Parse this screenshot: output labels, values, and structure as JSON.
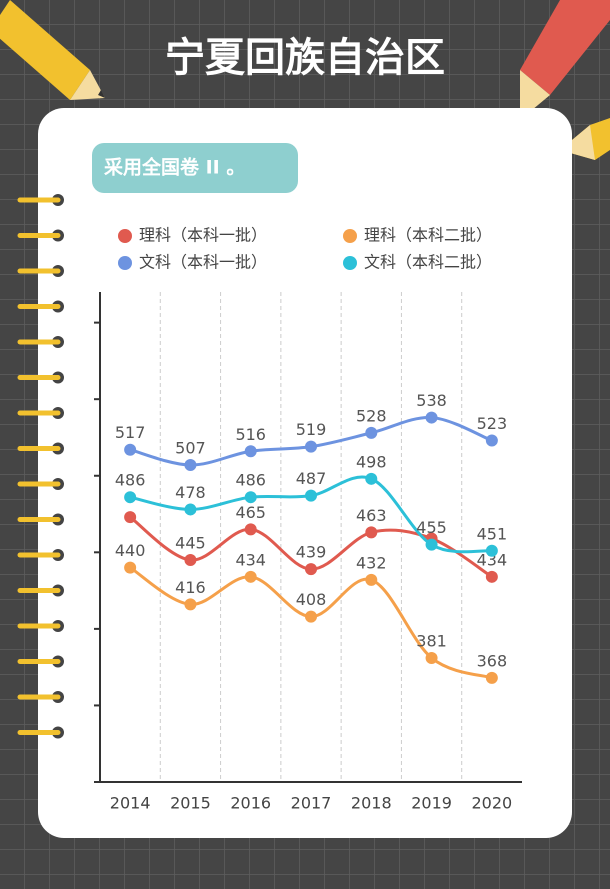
{
  "chart_data": {
    "type": "line",
    "title": "宁夏回族自治区",
    "subtitle": "采用全国卷 II 。",
    "categories": [
      "2014",
      "2015",
      "2016",
      "2017",
      "2018",
      "2019",
      "2020"
    ],
    "ylim": [
      300,
      620
    ],
    "yticks": [
      300,
      350,
      400,
      450,
      500,
      550,
      600
    ],
    "series": [
      {
        "name": "理科（本科一批）",
        "color": "#e05a4f",
        "values": [
          473,
          445,
          465,
          439,
          463,
          459,
          434
        ],
        "value_labels": [
          null,
          "445",
          "465",
          "439",
          "463",
          null,
          "434"
        ]
      },
      {
        "name": "理科（本科二批）",
        "color": "#f5a04a",
        "values": [
          440,
          416,
          434,
          408,
          432,
          381,
          368
        ]
      },
      {
        "name": "文科（本科一批）",
        "color": "#6d93e0",
        "values": [
          517,
          507,
          516,
          519,
          528,
          538,
          523
        ]
      },
      {
        "name": "文科（本科二批）",
        "color": "#2cc0d8",
        "values": [
          486,
          478,
          486,
          487,
          498,
          455,
          451
        ]
      }
    ]
  }
}
